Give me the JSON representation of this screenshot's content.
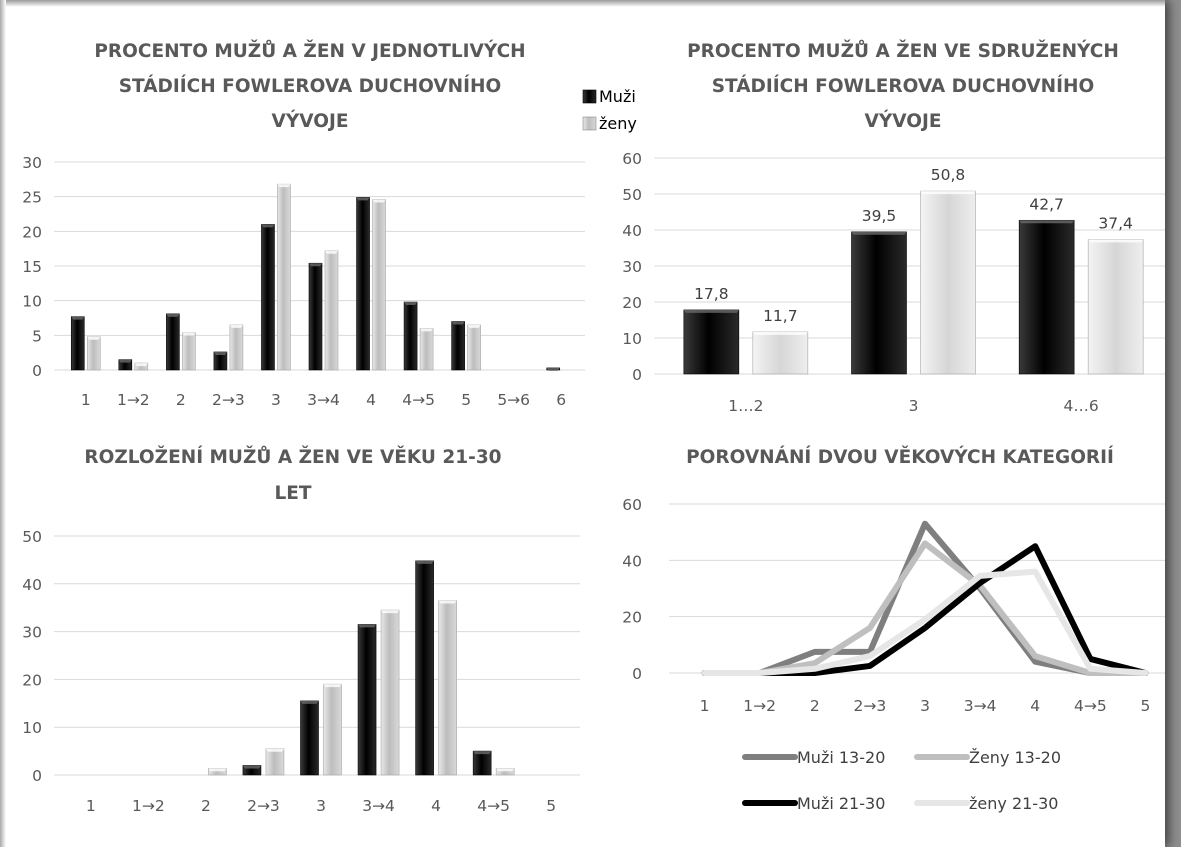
{
  "chart_data": [
    {
      "type": "bar",
      "title_lines": [
        "PROCENTO MUŽŮ A ŽEN V JEDNOTLIVÝCH",
        "STÁDIÍCH FOWLEROVA DUCHOVNÍHO",
        "VÝVOJE"
      ],
      "categories": [
        "1",
        "1→2",
        "2",
        "2→3",
        "3",
        "3→4",
        "4",
        "4→5",
        "5",
        "5→6",
        "6"
      ],
      "series": [
        {
          "name": "Muži",
          "values": [
            7.7,
            1.5,
            8.1,
            2.6,
            21.0,
            15.4,
            24.9,
            9.8,
            7.0,
            0,
            0.3
          ]
        },
        {
          "name": "ženy",
          "values": [
            4.8,
            1.0,
            5.4,
            6.5,
            26.8,
            17.2,
            24.6,
            6.0,
            6.5,
            0,
            0
          ]
        }
      ],
      "yticks": [
        0,
        5,
        10,
        15,
        20,
        25,
        30
      ],
      "ylim": [
        0,
        30
      ],
      "grid": true,
      "legend": [
        "Muži",
        "ženy"
      ],
      "legend_position": "top-right"
    },
    {
      "type": "bar",
      "title_lines": [
        "PROCENTO MUŽŮ A ŽEN VE SDRUŽENÝCH",
        "STÁDIÍCH FOWLEROVA DUCHOVNÍHO",
        "VÝVOJE"
      ],
      "categories": [
        "1…2",
        "3",
        "4…6"
      ],
      "series": [
        {
          "name": "Muži",
          "values": [
            17.8,
            39.5,
            42.7
          ]
        },
        {
          "name": "ženy",
          "values": [
            11.7,
            50.8,
            37.4
          ]
        }
      ],
      "data_labels": [
        [
          "17,8",
          "39,5",
          "42,7"
        ],
        [
          "11,7",
          "50,8",
          "37,4"
        ]
      ],
      "yticks": [
        0,
        10,
        20,
        30,
        40,
        50,
        60
      ],
      "ylim": [
        0,
        60
      ],
      "grid": true
    },
    {
      "type": "bar",
      "title_lines": [
        "ROZLOŽENÍ MUŽŮ A ŽEN VE VĚKU 21-30",
        "LET"
      ],
      "categories": [
        "1",
        "1→2",
        "2",
        "2→3",
        "3",
        "3→4",
        "4",
        "4→5",
        "5"
      ],
      "series": [
        {
          "name": "Muži",
          "values": [
            0,
            0,
            0,
            2.0,
            15.5,
            31.5,
            44.8,
            5.0,
            0
          ]
        },
        {
          "name": "ženy",
          "values": [
            0,
            0,
            1.4,
            5.5,
            19.0,
            34.5,
            36.5,
            1.4,
            0
          ]
        }
      ],
      "yticks": [
        0,
        10,
        20,
        30,
        40,
        50
      ],
      "ylim": [
        0,
        50
      ],
      "grid": true
    },
    {
      "type": "line",
      "title_lines": [
        "POROVNÁNÍ DVOU VĚKOVÝCH KATEGORIÍ"
      ],
      "categories": [
        "1",
        "1→2",
        "2",
        "2→3",
        "3",
        "3→4",
        "4",
        "4→5",
        "5"
      ],
      "series": [
        {
          "name": "Muži 13-20",
          "color": "#7f7f7f",
          "values": [
            0,
            0,
            7.5,
            7.5,
            53,
            30,
            4,
            0,
            0
          ]
        },
        {
          "name": "Ženy 13-20",
          "color": "#bfbfbf",
          "values": [
            0,
            0,
            3.5,
            16,
            46,
            31,
            6,
            0,
            0
          ]
        },
        {
          "name": "Muži 21-30",
          "color": "#000000",
          "values": [
            0,
            0,
            0,
            2.5,
            16,
            32,
            45,
            5,
            0
          ]
        },
        {
          "name": "ženy 21-30",
          "color": "#e6e6e6",
          "values": [
            0,
            0,
            1.5,
            6,
            19,
            34.5,
            36,
            1.5,
            0
          ]
        }
      ],
      "yticks": [
        0,
        20,
        40,
        60
      ],
      "ylim": [
        0,
        60
      ],
      "grid": true,
      "legend_position": "bottom"
    }
  ]
}
